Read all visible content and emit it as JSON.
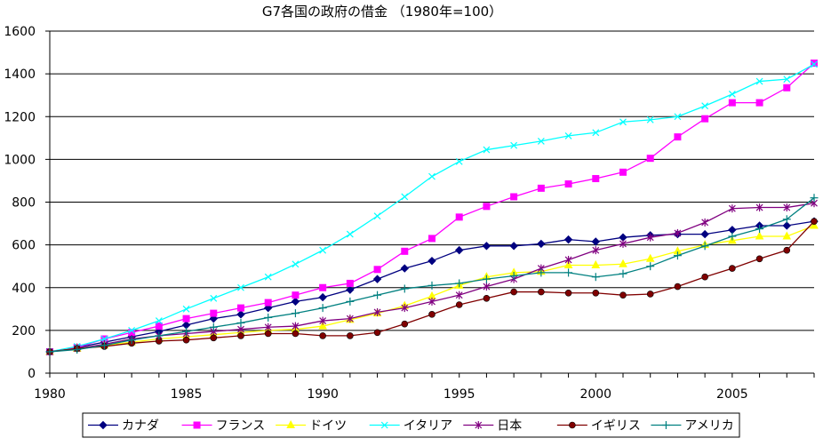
{
  "chart_data": {
    "type": "line",
    "title": "G7各国の政府の借金 （1980年=100）",
    "xlabel": "",
    "ylabel": "",
    "x": [
      1980,
      1981,
      1982,
      1983,
      1984,
      1985,
      1986,
      1987,
      1988,
      1989,
      1990,
      1991,
      1992,
      1993,
      1994,
      1995,
      1996,
      1997,
      1998,
      1999,
      2000,
      2001,
      2002,
      2003,
      2004,
      2005,
      2006,
      2007,
      2008
    ],
    "xlim": [
      1980,
      2008
    ],
    "ylim": [
      0,
      1600
    ],
    "x_ticks": [
      1980,
      1985,
      1990,
      1995,
      2000,
      2005
    ],
    "x_tick_labels": [
      "1980",
      "1985",
      "1990",
      "1995",
      "2000",
      "2005"
    ],
    "y_ticks": [
      0,
      200,
      400,
      600,
      800,
      1000,
      1200,
      1400,
      1600
    ],
    "y_tick_labels": [
      "0",
      "200",
      "400",
      "600",
      "800",
      "1000",
      "1200",
      "1400",
      "1600"
    ],
    "grid": "horizontal",
    "legend_position": "bottom",
    "series": [
      {
        "name": "カナダ",
        "color": "#000080",
        "marker": "diamond",
        "values": [
          100,
          120,
          145,
          170,
          195,
          225,
          255,
          275,
          305,
          335,
          355,
          390,
          440,
          490,
          525,
          575,
          595,
          595,
          605,
          625,
          615,
          635,
          645,
          650,
          650,
          670,
          690,
          690,
          710
        ]
      },
      {
        "name": "フランス",
        "color": "#ff00ff",
        "marker": "square",
        "values": [
          100,
          120,
          160,
          190,
          220,
          255,
          280,
          305,
          330,
          365,
          400,
          420,
          485,
          570,
          630,
          730,
          780,
          825,
          865,
          885,
          910,
          940,
          1005,
          1105,
          1190,
          1265,
          1265,
          1335,
          1450
        ]
      },
      {
        "name": "ドイツ",
        "color": "#ffff00",
        "marker": "triangle",
        "values": [
          100,
          115,
          130,
          145,
          160,
          170,
          180,
          190,
          200,
          205,
          220,
          250,
          280,
          315,
          360,
          410,
          450,
          470,
          475,
          505,
          505,
          510,
          535,
          570,
          600,
          620,
          640,
          640,
          690
        ]
      },
      {
        "name": "イタリア",
        "color": "#00ffff",
        "marker": "x",
        "values": [
          100,
          125,
          160,
          200,
          245,
          300,
          350,
          400,
          450,
          510,
          575,
          650,
          735,
          825,
          920,
          990,
          1045,
          1065,
          1085,
          1110,
          1125,
          1175,
          1185,
          1200,
          1250,
          1305,
          1365,
          1375,
          1445
        ]
      },
      {
        "name": "日本",
        "color": "#800080",
        "marker": "star",
        "values": [
          100,
          115,
          135,
          160,
          175,
          185,
          195,
          205,
          215,
          220,
          245,
          255,
          285,
          305,
          335,
          365,
          405,
          440,
          490,
          530,
          575,
          605,
          635,
          655,
          705,
          770,
          775,
          775,
          795
        ]
      },
      {
        "name": "イギリス",
        "color": "#800000",
        "marker": "circle",
        "values": [
          100,
          115,
          125,
          140,
          150,
          155,
          165,
          175,
          185,
          185,
          175,
          175,
          190,
          230,
          275,
          320,
          350,
          380,
          380,
          375,
          375,
          365,
          370,
          405,
          450,
          490,
          535,
          575,
          710
        ]
      },
      {
        "name": "アメリカ",
        "color": "#008080",
        "marker": "plus",
        "values": [
          100,
          110,
          130,
          155,
          175,
          195,
          215,
          235,
          260,
          280,
          305,
          335,
          365,
          395,
          410,
          420,
          440,
          455,
          470,
          470,
          450,
          465,
          500,
          550,
          595,
          640,
          675,
          720,
          820
        ]
      }
    ]
  }
}
